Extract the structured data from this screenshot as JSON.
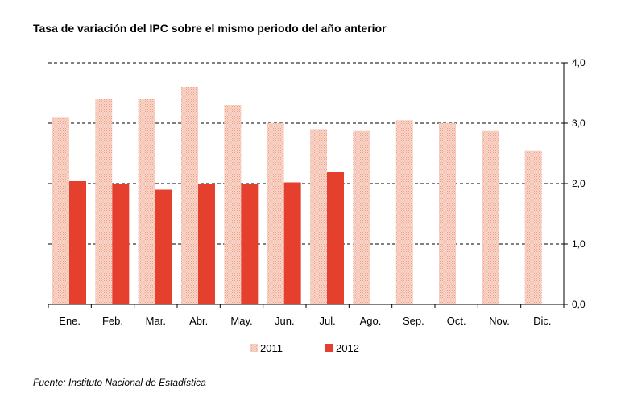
{
  "chart_data": {
    "type": "bar",
    "title": "Tasa de variación del IPC sobre el mismo periodo del año anterior",
    "categories": [
      "Ene.",
      "Feb.",
      "Mar.",
      "Abr.",
      "May.",
      "Jun.",
      "Jul.",
      "Ago.",
      "Sep.",
      "Oct.",
      "Nov.",
      "Dic."
    ],
    "series": [
      {
        "name": "2011",
        "color": "#f6c3b3",
        "pattern": "dotted",
        "values": [
          3.1,
          3.4,
          3.4,
          3.6,
          3.3,
          3.0,
          2.9,
          2.87,
          3.05,
          3.0,
          2.87,
          2.55
        ]
      },
      {
        "name": "2012",
        "color": "#e5402e",
        "values": [
          2.04,
          2.0,
          1.9,
          2.0,
          2.0,
          2.02,
          2.2,
          null,
          null,
          null,
          null,
          null
        ]
      }
    ],
    "ylim": [
      0,
      4
    ],
    "yticks": [
      0,
      1,
      2,
      3,
      4
    ],
    "ytick_labels": [
      "0,0",
      "1,0",
      "2,0",
      "3,0",
      "4,0"
    ],
    "y_axis_side": "right",
    "grid": "horizontal dashed",
    "legend_position": "bottom",
    "source": "Fuente: Instituto Nacional de Estadística"
  }
}
